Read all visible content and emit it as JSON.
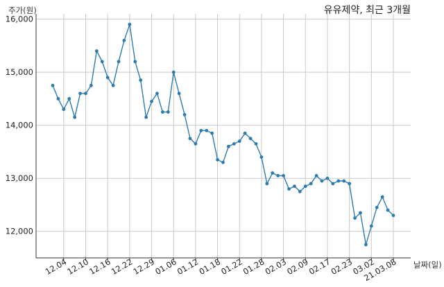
{
  "chart_data": {
    "type": "line",
    "title": "유유제약, 최근 3개월",
    "ylabel": "주가(원)",
    "xlabel": "날짜(일)",
    "ylim": [
      11500,
      16100
    ],
    "yticks": [
      12000,
      13000,
      14000,
      15000,
      16000
    ],
    "ytick_labels": [
      "12,000",
      "13,000",
      "14,000",
      "15,000",
      "16,000"
    ],
    "grid": true,
    "x_tick_labels": [
      "12.04",
      "12.10",
      "12.16",
      "12.22",
      "12.29",
      "01.06",
      "01.12",
      "01.18",
      "01.22",
      "01.28",
      "02.03",
      "02.09",
      "02.17",
      "02.23",
      "03.02",
      "21.03.08"
    ],
    "x_tick_index": [
      2,
      6,
      10,
      14,
      18,
      22,
      26,
      30,
      34,
      38,
      42,
      46,
      50,
      54,
      58,
      62
    ],
    "series": [
      {
        "values": [
          14750,
          14500,
          14300,
          14500,
          14150,
          14600,
          14600,
          14750,
          15400,
          15200,
          14900,
          14750,
          15200,
          15600,
          15900,
          15200,
          14850,
          14150,
          14450,
          14600,
          14250,
          14250,
          15000,
          14600,
          14200,
          13750,
          13650,
          13900,
          13900,
          13850,
          13350,
          13300,
          13600,
          13650,
          13700,
          13850,
          13750,
          13650,
          13400,
          12900,
          13100,
          13050,
          13050,
          12800,
          12850,
          12750,
          12850,
          12900,
          13050,
          12950,
          13000,
          12900,
          12950,
          12950,
          12900,
          12250,
          12350,
          11750,
          12100,
          12450,
          12650,
          12400,
          12300
        ]
      }
    ]
  }
}
